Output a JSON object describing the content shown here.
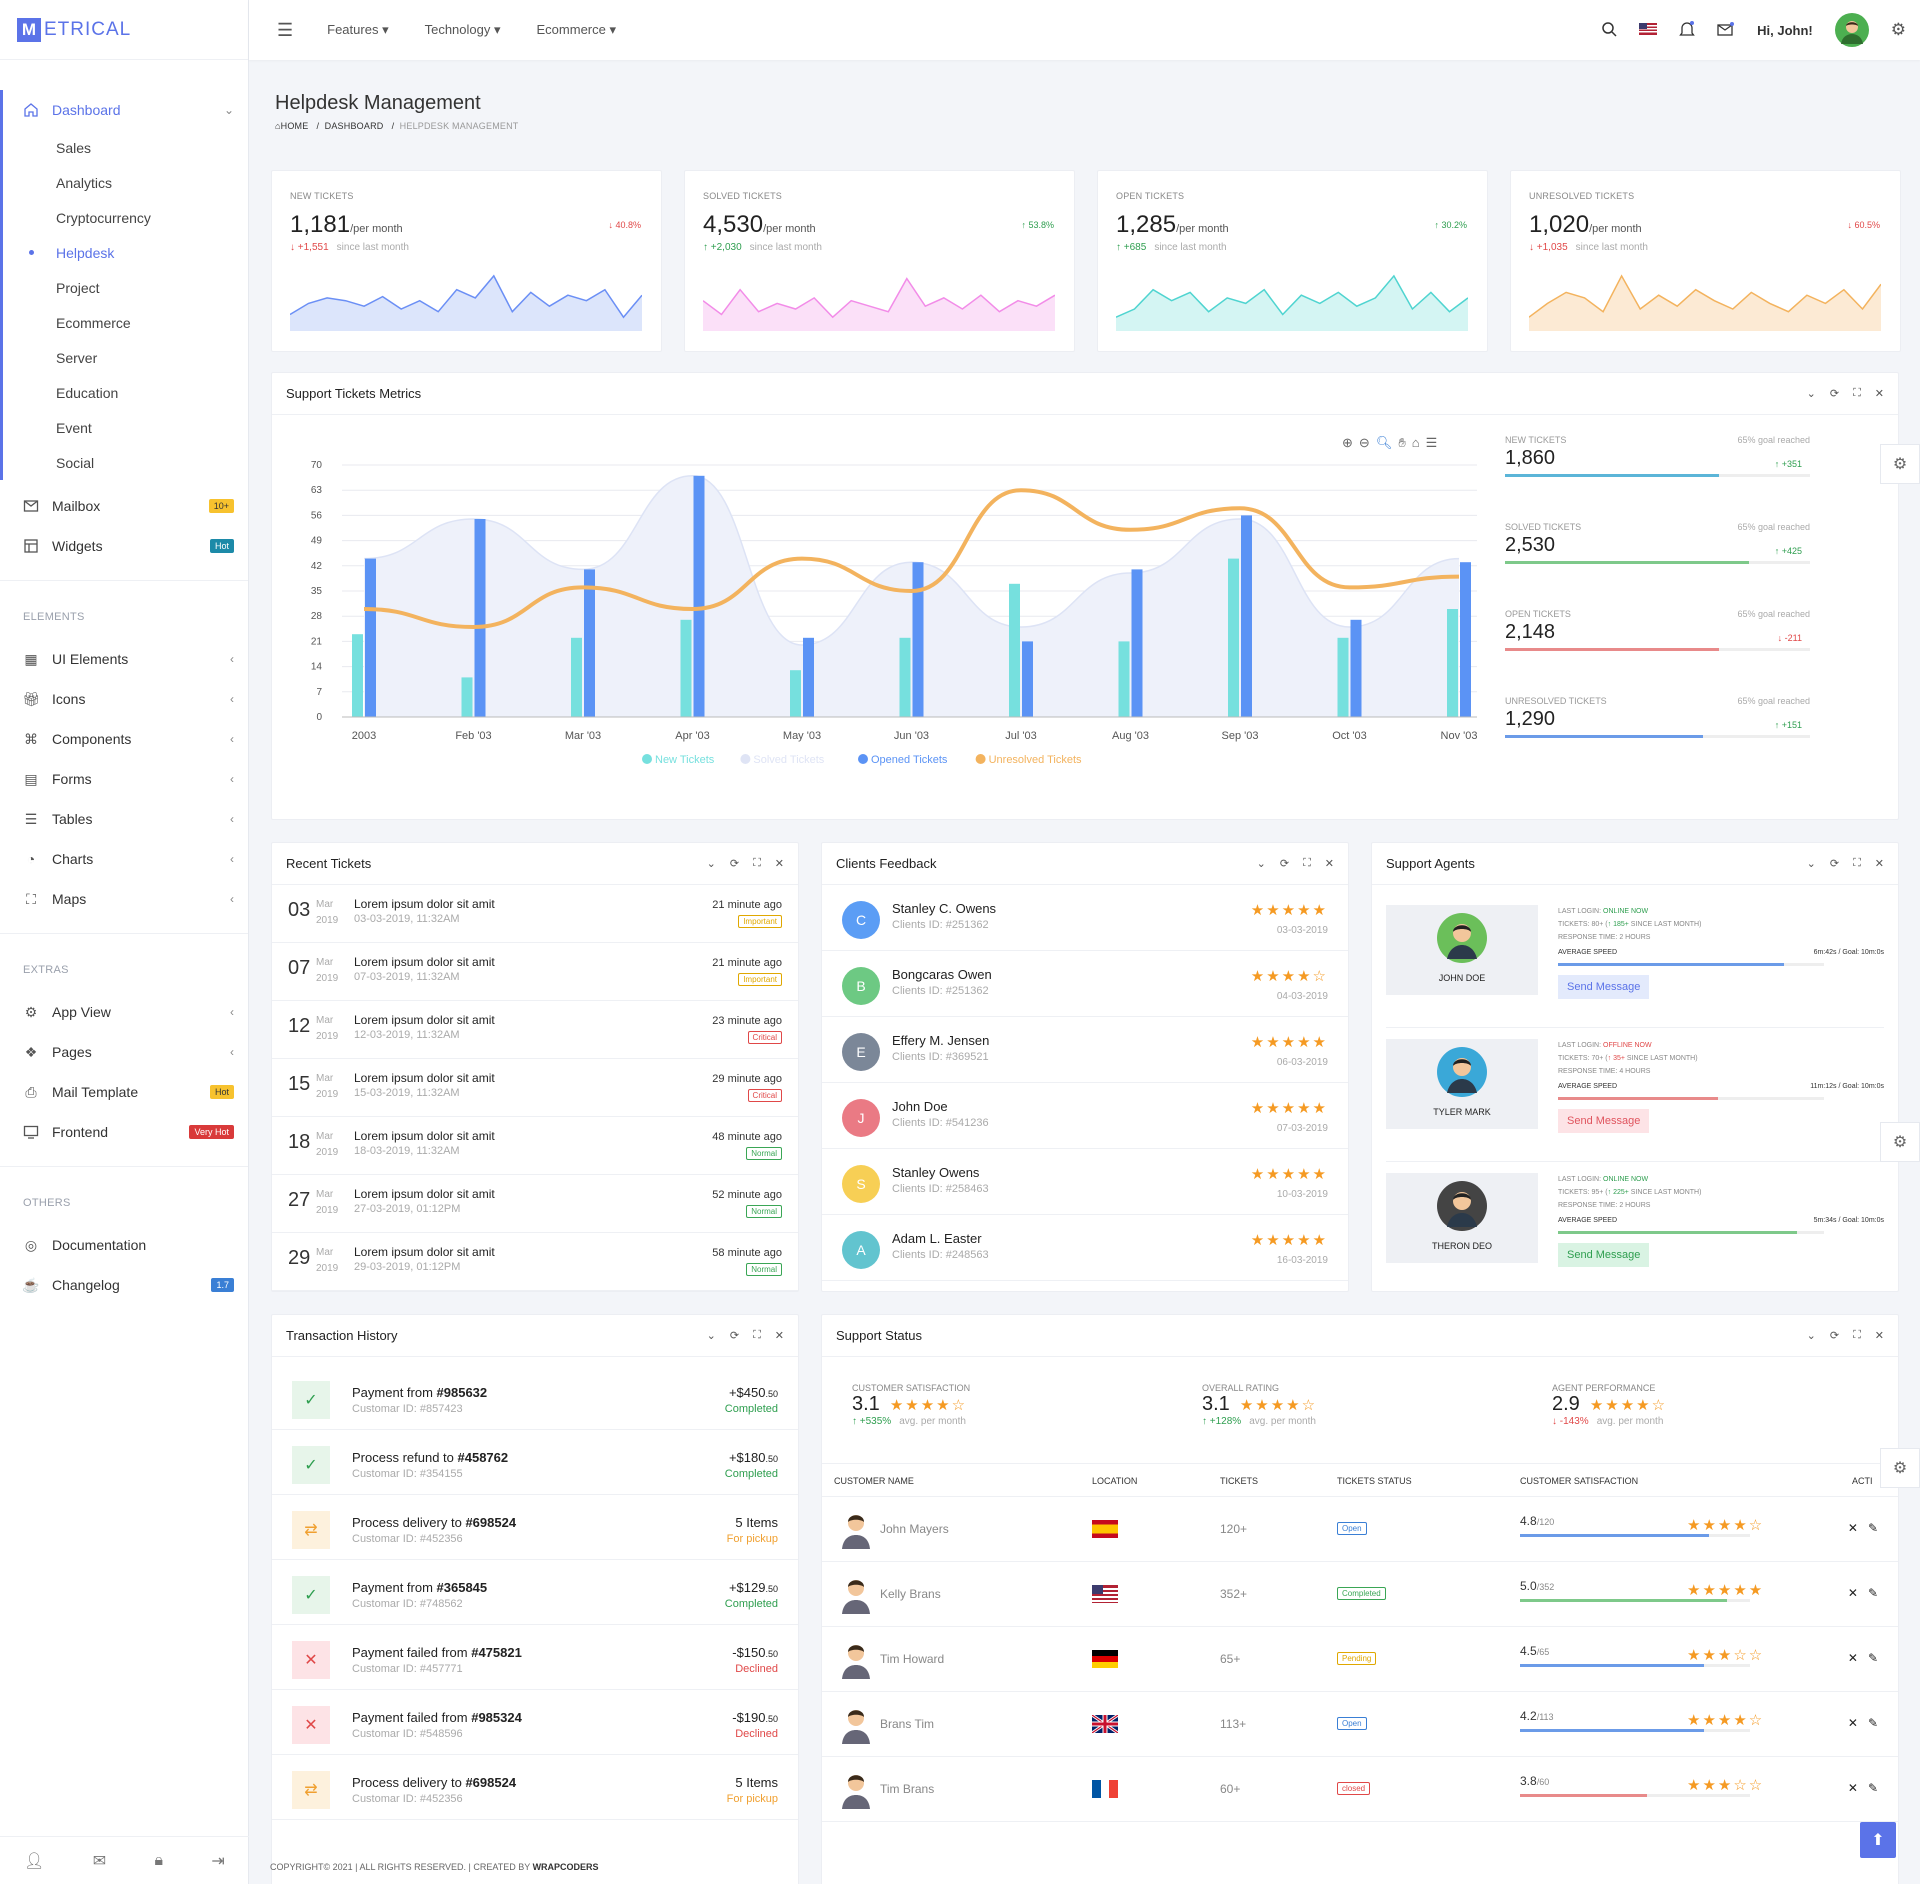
{
  "brand": {
    "m": "M",
    "rest": "ETRICAL"
  },
  "sidebar": {
    "dashboard": "Dashboard",
    "sub": [
      "Sales",
      "Analytics",
      "Cryptocurrency",
      "Helpdesk",
      "Project",
      "Ecommerce",
      "Server",
      "Education",
      "Event",
      "Social"
    ],
    "mailbox": "Mailbox",
    "mailbox_badge": "10+",
    "widgets": "Widgets",
    "widgets_badge": "Hot",
    "elements_title": "ELEMENTS",
    "elements": [
      "UI Elements",
      "Icons",
      "Components",
      "Forms",
      "Tables",
      "Charts",
      "Maps"
    ],
    "extras_title": "EXTRAS",
    "app_view": "App View",
    "pages": "Pages",
    "mail_template": "Mail Template",
    "mail_badge": "Hot",
    "frontend": "Frontend",
    "frontend_badge": "Very Hot",
    "others_title": "OTHERS",
    "documentation": "Documentation",
    "changelog": "Changelog",
    "changelog_badge": "1.7"
  },
  "topbar": {
    "features": "Features",
    "technology": "Technology",
    "ecommerce": "Ecommerce",
    "greeting": "Hi, John!"
  },
  "page": {
    "title": "Helpdesk Management",
    "crumb_home": "HOME",
    "crumb_dash": "DASHBOARD",
    "crumb_last": "HELPDESK MANAGEMENT"
  },
  "stats": [
    {
      "title": "NEW TICKETS",
      "value": "1,181",
      "unit": "/per month",
      "pct": "40.8%",
      "dir": "dn",
      "change": "+1,551",
      "since": "since last month",
      "color": "#6b8ff5",
      "fill": "#dce5fb",
      "points": [
        12,
        20,
        24,
        22,
        18,
        25,
        16,
        22,
        14,
        30,
        24,
        40,
        14,
        28,
        18,
        26,
        22,
        30,
        10,
        26
      ]
    },
    {
      "title": "SOLVED TICKETS",
      "value": "4,530",
      "unit": "/per month",
      "pct": "53.8%",
      "dir": "up",
      "change": "+2,030",
      "since": "since last month",
      "color": "#f28ce8",
      "fill": "#fbe0f8",
      "points": [
        22,
        12,
        30,
        14,
        20,
        16,
        24,
        10,
        22,
        18,
        14,
        38,
        18,
        24,
        16,
        26,
        14,
        22,
        18,
        26
      ]
    },
    {
      "title": "OPEN TICKETS",
      "value": "1,285",
      "unit": "/per month",
      "pct": "30.2%",
      "dir": "up",
      "change": "+685",
      "since": "since last month",
      "color": "#4fd4d0",
      "fill": "#d4f5f3",
      "points": [
        10,
        16,
        30,
        22,
        28,
        14,
        24,
        20,
        30,
        12,
        26,
        20,
        28,
        18,
        24,
        40,
        16,
        28,
        14,
        24
      ]
    },
    {
      "title": "UNRESOLVED TICKETS",
      "value": "1,020",
      "unit": "/per month",
      "pct": "60.5%",
      "dir": "dn",
      "change": "+1,035",
      "since": "since last month",
      "color": "#f3b35e",
      "fill": "#fcead4",
      "points": [
        10,
        20,
        28,
        24,
        14,
        40,
        16,
        26,
        18,
        30,
        22,
        16,
        28,
        20,
        14,
        26,
        20,
        30,
        16,
        34
      ]
    }
  ],
  "metrics_card": {
    "title": "Support Tickets Metrics"
  },
  "chart_data": {
    "type": "bar",
    "categories": [
      "2003",
      "Feb '03",
      "Mar '03",
      "Apr '03",
      "May '03",
      "Jun '03",
      "Jul '03",
      "Aug '03",
      "Sep '03",
      "Oct '03",
      "Nov '03"
    ],
    "ylim": [
      0,
      70
    ],
    "yticks": [
      0,
      7,
      14,
      21,
      28,
      35,
      42,
      49,
      56,
      63,
      70
    ],
    "series": [
      {
        "name": "New Tickets",
        "type": "bar",
        "color": "#76e0de",
        "values": [
          23,
          11,
          22,
          27,
          13,
          22,
          37,
          21,
          44,
          22,
          30
        ]
      },
      {
        "name": "Solved Tickets",
        "type": "area",
        "color": "#dde3f5",
        "values": [
          44,
          55,
          41,
          67,
          20,
          43,
          25,
          40,
          55,
          25,
          44
        ]
      },
      {
        "name": "Opened Tickets",
        "type": "bar",
        "color": "#5b93f5",
        "values": [
          44,
          55,
          41,
          67,
          22,
          43,
          21,
          41,
          56,
          27,
          43
        ]
      },
      {
        "name": "Unresolved Tickets",
        "type": "line",
        "color": "#f3b35e",
        "values": [
          30,
          25,
          36,
          30,
          44,
          35,
          63,
          52,
          58,
          36,
          39
        ]
      }
    ]
  },
  "metrics": [
    {
      "title": "NEW TICKETS",
      "goal": "65% goal reached",
      "value": "1,860",
      "change": "+351",
      "dir": "up",
      "color": "#5bb5d8",
      "fill": 0.7
    },
    {
      "title": "SOLVED TICKETS",
      "goal": "65% goal reached",
      "value": "2,530",
      "change": "+425",
      "dir": "up",
      "color": "#7ec98a",
      "fill": 0.8
    },
    {
      "title": "OPEN TICKETS",
      "goal": "65% goal reached",
      "value": "2,148",
      "change": "-211",
      "dir": "dn",
      "color": "#e88a8a",
      "fill": 0.7
    },
    {
      "title": "UNRESOLVED TICKETS",
      "goal": "65% goal reached",
      "value": "1,290",
      "change": "+151",
      "dir": "up",
      "color": "#6b9be8",
      "fill": 0.65
    }
  ],
  "recent": {
    "title": "Recent Tickets",
    "rows": [
      {
        "day": "03",
        "mon": "Mar",
        "year": "2019",
        "title": "Lorem ipsum dolor sit amit",
        "date": "03-03-2019, 11:32AM",
        "ago": "21 minute ago",
        "tag": "Important",
        "tagcolor": "#e0a800"
      },
      {
        "day": "07",
        "mon": "Mar",
        "year": "2019",
        "title": "Lorem ipsum dolor sit amit",
        "date": "07-03-2019, 11:32AM",
        "ago": "21 minute ago",
        "tag": "Important",
        "tagcolor": "#e0a800"
      },
      {
        "day": "12",
        "mon": "Mar",
        "year": "2019",
        "title": "Lorem ipsum dolor sit amit",
        "date": "12-03-2019, 11:32AM",
        "ago": "23 minute ago",
        "tag": "Critical",
        "tagcolor": "#e04848"
      },
      {
        "day": "15",
        "mon": "Mar",
        "year": "2019",
        "title": "Lorem ipsum dolor sit amit",
        "date": "15-03-2019, 11:32AM",
        "ago": "29 minute ago",
        "tag": "Critical",
        "tagcolor": "#e04848"
      },
      {
        "day": "18",
        "mon": "Mar",
        "year": "2019",
        "title": "Lorem ipsum dolor sit amit",
        "date": "18-03-2019, 11:32AM",
        "ago": "48 minute ago",
        "tag": "Normal",
        "tagcolor": "#3aa655"
      },
      {
        "day": "27",
        "mon": "Mar",
        "year": "2019",
        "title": "Lorem ipsum dolor sit amit",
        "date": "27-03-2019, 01:12PM",
        "ago": "52 minute ago",
        "tag": "Normal",
        "tagcolor": "#3aa655"
      },
      {
        "day": "29",
        "mon": "Mar",
        "year": "2019",
        "title": "Lorem ipsum dolor sit amit",
        "date": "29-03-2019, 01:12PM",
        "ago": "58 minute ago",
        "tag": "Normal",
        "tagcolor": "#3aa655"
      }
    ]
  },
  "feedback": {
    "title": "Clients Feedback",
    "rows": [
      {
        "init": "C",
        "color": "#5b9df5",
        "name": "Stanley C. Owens",
        "cid": "Clients ID: #251362",
        "stars": "★★★★★",
        "date": "03-03-2019"
      },
      {
        "init": "B",
        "color": "#6dc983",
        "name": "Bongcaras Owen",
        "cid": "Clients ID: #251362",
        "stars": "★★★★☆",
        "date": "04-03-2019"
      },
      {
        "init": "E",
        "color": "#7b8798",
        "name": "Effery M. Jensen",
        "cid": "Clients ID: #369521",
        "stars": "★★★★★",
        "date": "06-03-2019"
      },
      {
        "init": "J",
        "color": "#ea7a84",
        "name": "John Doe",
        "cid": "Clients ID: #541236",
        "stars": "★★★★★",
        "date": "07-03-2019"
      },
      {
        "init": "S",
        "color": "#f7cf55",
        "name": "Stanley Owens",
        "cid": "Clients ID: #258463",
        "stars": "★★★★★",
        "date": "10-03-2019"
      },
      {
        "init": "A",
        "color": "#62c4cf",
        "name": "Adam L. Easter",
        "cid": "Clients ID: #248563",
        "stars": "★★★★★",
        "date": "16-03-2019"
      }
    ]
  },
  "agents": {
    "title": "Support Agents",
    "rows": [
      {
        "name": "JOHN DOE",
        "status": "ONLINE NOW",
        "scolor": "#2e9e4f",
        "tickets": "80+",
        "plus": "185+",
        "resp": "2 HOURS",
        "speed": "6m:42s / Goal: 10m:0s",
        "bar": "#6b9be8",
        "fill": 0.85,
        "btn": "Send Message",
        "btnbg": "#e3eafc",
        "btnc": "#5b73e8",
        "facebg": "#6bbf5a"
      },
      {
        "name": "TYLER MARK",
        "status": "OFFLINE NOW",
        "scolor": "#e04848",
        "tickets": "70+",
        "plus": "35+",
        "resp": "4 HOURS",
        "speed": "11m:12s / Goal: 10m:0s",
        "bar": "#e88a8a",
        "fill": 0.6,
        "btn": "Send Message",
        "btnbg": "#fde3e6",
        "btnc": "#e0545e",
        "facebg": "#3aa8d8"
      },
      {
        "name": "THERON DEO",
        "status": "ONLINE NOW",
        "scolor": "#2e9e4f",
        "tickets": "95+",
        "plus": "225+",
        "resp": "2 HOURS",
        "speed": "5m:34s / Goal: 10m:0s",
        "bar": "#7ec98a",
        "fill": 0.9,
        "btn": "Send Message",
        "btnbg": "#d9f3e3",
        "btnc": "#2e9e4f",
        "facebg": "#444"
      }
    ]
  },
  "transactions": {
    "title": "Transaction History",
    "rows": [
      {
        "icon": "✓",
        "bg": "#e7f5ea",
        "ic": "#2e9e4f",
        "pre": "Payment from ",
        "ref": "#985632",
        "cid": "Customar ID: #857423",
        "amt": "+$450",
        "cents": ".50",
        "st": "Completed",
        "stc": "#2e9e4f"
      },
      {
        "icon": "✓",
        "bg": "#e7f5ea",
        "ic": "#2e9e4f",
        "pre": "Process refund to ",
        "ref": "#458762",
        "cid": "Customar ID: #354155",
        "amt": "+$180",
        "cents": ".50",
        "st": "Completed",
        "stc": "#2e9e4f"
      },
      {
        "icon": "⇄",
        "bg": "#fdf1dd",
        "ic": "#f0a030",
        "pre": "Process delivery to ",
        "ref": "#698524",
        "cid": "Customar ID: #452356",
        "amt": "5 Items",
        "cents": "",
        "st": "For pickup",
        "stc": "#f0a030"
      },
      {
        "icon": "✓",
        "bg": "#e7f5ea",
        "ic": "#2e9e4f",
        "pre": "Payment from ",
        "ref": "#365845",
        "cid": "Customar ID: #748562",
        "amt": "+$129",
        "cents": ".50",
        "st": "Completed",
        "stc": "#2e9e4f"
      },
      {
        "icon": "✕",
        "bg": "#fde3e6",
        "ic": "#e04848",
        "pre": "Payment failed from ",
        "ref": "#475821",
        "cid": "Customar ID: #457771",
        "amt": "-$150",
        "cents": ".50",
        "st": "Declined",
        "stc": "#e04848"
      },
      {
        "icon": "✕",
        "bg": "#fde3e6",
        "ic": "#e04848",
        "pre": "Payment failed from ",
        "ref": "#985324",
        "cid": "Customar ID: #548596",
        "amt": "-$190",
        "cents": ".50",
        "st": "Declined",
        "stc": "#e04848"
      },
      {
        "icon": "⇄",
        "bg": "#fdf1dd",
        "ic": "#f0a030",
        "pre": "Process delivery to ",
        "ref": "#698524",
        "cid": "Customar ID: #452356",
        "amt": "5 Items",
        "cents": "",
        "st": "For pickup",
        "stc": "#f0a030"
      }
    ]
  },
  "support": {
    "title": "Support Status",
    "summary": [
      {
        "label": "CUSTOMER SATISFACTION",
        "num": "3.1",
        "stars": "★★★★☆",
        "chg": "+535%",
        "dir": "up",
        "note": "avg. per month"
      },
      {
        "label": "OVERALL RATING",
        "num": "3.1",
        "stars": "★★★★☆",
        "chg": "+128%",
        "dir": "up",
        "note": "avg. per month"
      },
      {
        "label": "AGENT PERFORMANCE",
        "num": "2.9",
        "stars": "★★★★☆",
        "chg": "-143%",
        "dir": "dn",
        "note": "avg. per month"
      }
    ],
    "headers": [
      "CUSTOMER NAME",
      "LOCATION",
      "TICKETS",
      "TICKETS STATUS",
      "CUSTOMER SATISFACTION",
      "ACTI"
    ],
    "rows": [
      {
        "name": "John Mayers",
        "flag": "es",
        "tickets": "120+",
        "status": "Open",
        "sc": "#3a7fd5",
        "cs": "4.8",
        "of": "/120",
        "bar": "#6b9be8",
        "fill": 0.82,
        "stars": "★★★★☆"
      },
      {
        "name": "Kelly Brans",
        "flag": "us",
        "tickets": "352+",
        "status": "Completed",
        "sc": "#3aa655",
        "cs": "5.0",
        "of": "/352",
        "bar": "#7ec98a",
        "fill": 0.9,
        "stars": "★★★★★"
      },
      {
        "name": "Tim Howard",
        "flag": "de",
        "tickets": "65+",
        "status": "Pending",
        "sc": "#e0a800",
        "cs": "4.5",
        "of": "/65",
        "bar": "#6b9be8",
        "fill": 0.8,
        "stars": "★★★☆☆"
      },
      {
        "name": "Brans Tim",
        "flag": "gb",
        "tickets": "113+",
        "status": "Open",
        "sc": "#3a7fd5",
        "cs": "4.2",
        "of": "/113",
        "bar": "#6b9be8",
        "fill": 0.8,
        "stars": "★★★★☆"
      },
      {
        "name": "Tim Brans",
        "flag": "fr",
        "tickets": "60+",
        "status": "closed",
        "sc": "#e04848",
        "cs": "3.8",
        "of": "/60",
        "bar": "#e88a8a",
        "fill": 0.55,
        "stars": "★★★☆☆"
      }
    ]
  },
  "footer": {
    "text": "COPYRIGHT© 2021 | ALL RIGHTS RESERVED. | CREATED BY ",
    "brand": "WRAPCODERS"
  }
}
